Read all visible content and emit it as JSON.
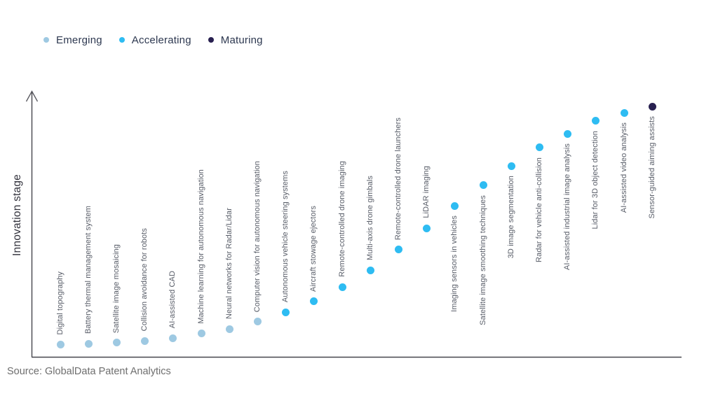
{
  "legend": {
    "items": [
      {
        "label": "Emerging",
        "stage": "emerging"
      },
      {
        "label": "Accelerating",
        "stage": "accelerating"
      },
      {
        "label": "Maturing",
        "stage": "maturing"
      }
    ]
  },
  "colors": {
    "emerging": "#9ec9e2",
    "accelerating": "#2ebcf2",
    "maturing": "#282050",
    "axis": "#45454c",
    "label_text": "#585d68"
  },
  "source": {
    "text": "Source: GlobalData Patent Analytics"
  },
  "chart_data": {
    "type": "scatter",
    "title": "",
    "xlabel": "",
    "ylabel": "Innovation stage",
    "y_axis": {
      "has_ticks": false,
      "has_arrow": true,
      "range_hint": [
        0,
        100
      ]
    },
    "legend_position": "top-left",
    "grid": false,
    "points": [
      {
        "label": "Digital topography",
        "stage": "emerging",
        "stage_value": 4.5
      },
      {
        "label": "Battery thermal management system",
        "stage": "emerging",
        "stage_value": 5.0
      },
      {
        "label": "Satellite image mosaicing",
        "stage": "emerging",
        "stage_value": 5.3
      },
      {
        "label": "Collision avoidance for robots",
        "stage": "emerging",
        "stage_value": 6.0
      },
      {
        "label": "AI-assisted CAD",
        "stage": "emerging",
        "stage_value": 7.1
      },
      {
        "label": "Machine learning for autonomous navigation",
        "stage": "emerging",
        "stage_value": 8.7
      },
      {
        "label": "Neural networks for Radar/Lidar",
        "stage": "emerging",
        "stage_value": 10.5
      },
      {
        "label": "Computer vision for autonomous navigation",
        "stage": "emerging",
        "stage_value": 13.2
      },
      {
        "label": "Autonomous vehicle steering systems",
        "stage": "accelerating",
        "stage_value": 16.8
      },
      {
        "label": "Aircraft stowage ejectors",
        "stage": "accelerating",
        "stage_value": 20.8
      },
      {
        "label": "Remote-controlled drone imaging",
        "stage": "accelerating",
        "stage_value": 26.3
      },
      {
        "label": "Multi-axis drone gimbals",
        "stage": "accelerating",
        "stage_value": 32.6
      },
      {
        "label": "Remote-controlled drone launchers",
        "stage": "accelerating",
        "stage_value": 40.3
      },
      {
        "label": "LiDAR imaging",
        "stage": "accelerating",
        "stage_value": 48.4
      },
      {
        "label": "Imaging sensors in vehicles",
        "stage": "accelerating",
        "stage_value": 56.8
      },
      {
        "label": "Satellite image smoothing techniques",
        "stage": "accelerating",
        "stage_value": 64.5
      },
      {
        "label": "3D image segmentation",
        "stage": "accelerating",
        "stage_value": 71.8
      },
      {
        "label": "Radar for vehicle anti-collision",
        "stage": "accelerating",
        "stage_value": 78.7
      },
      {
        "label": "AI-assisted industrial image analysis",
        "stage": "accelerating",
        "stage_value": 83.9
      },
      {
        "label": "Lidar for 3D object detection",
        "stage": "accelerating",
        "stage_value": 88.7
      },
      {
        "label": "AI-assisted video analysis",
        "stage": "accelerating",
        "stage_value": 91.8
      },
      {
        "label": "Sensor-guided aiming assists",
        "stage": "maturing",
        "stage_value": 94.2
      }
    ]
  }
}
